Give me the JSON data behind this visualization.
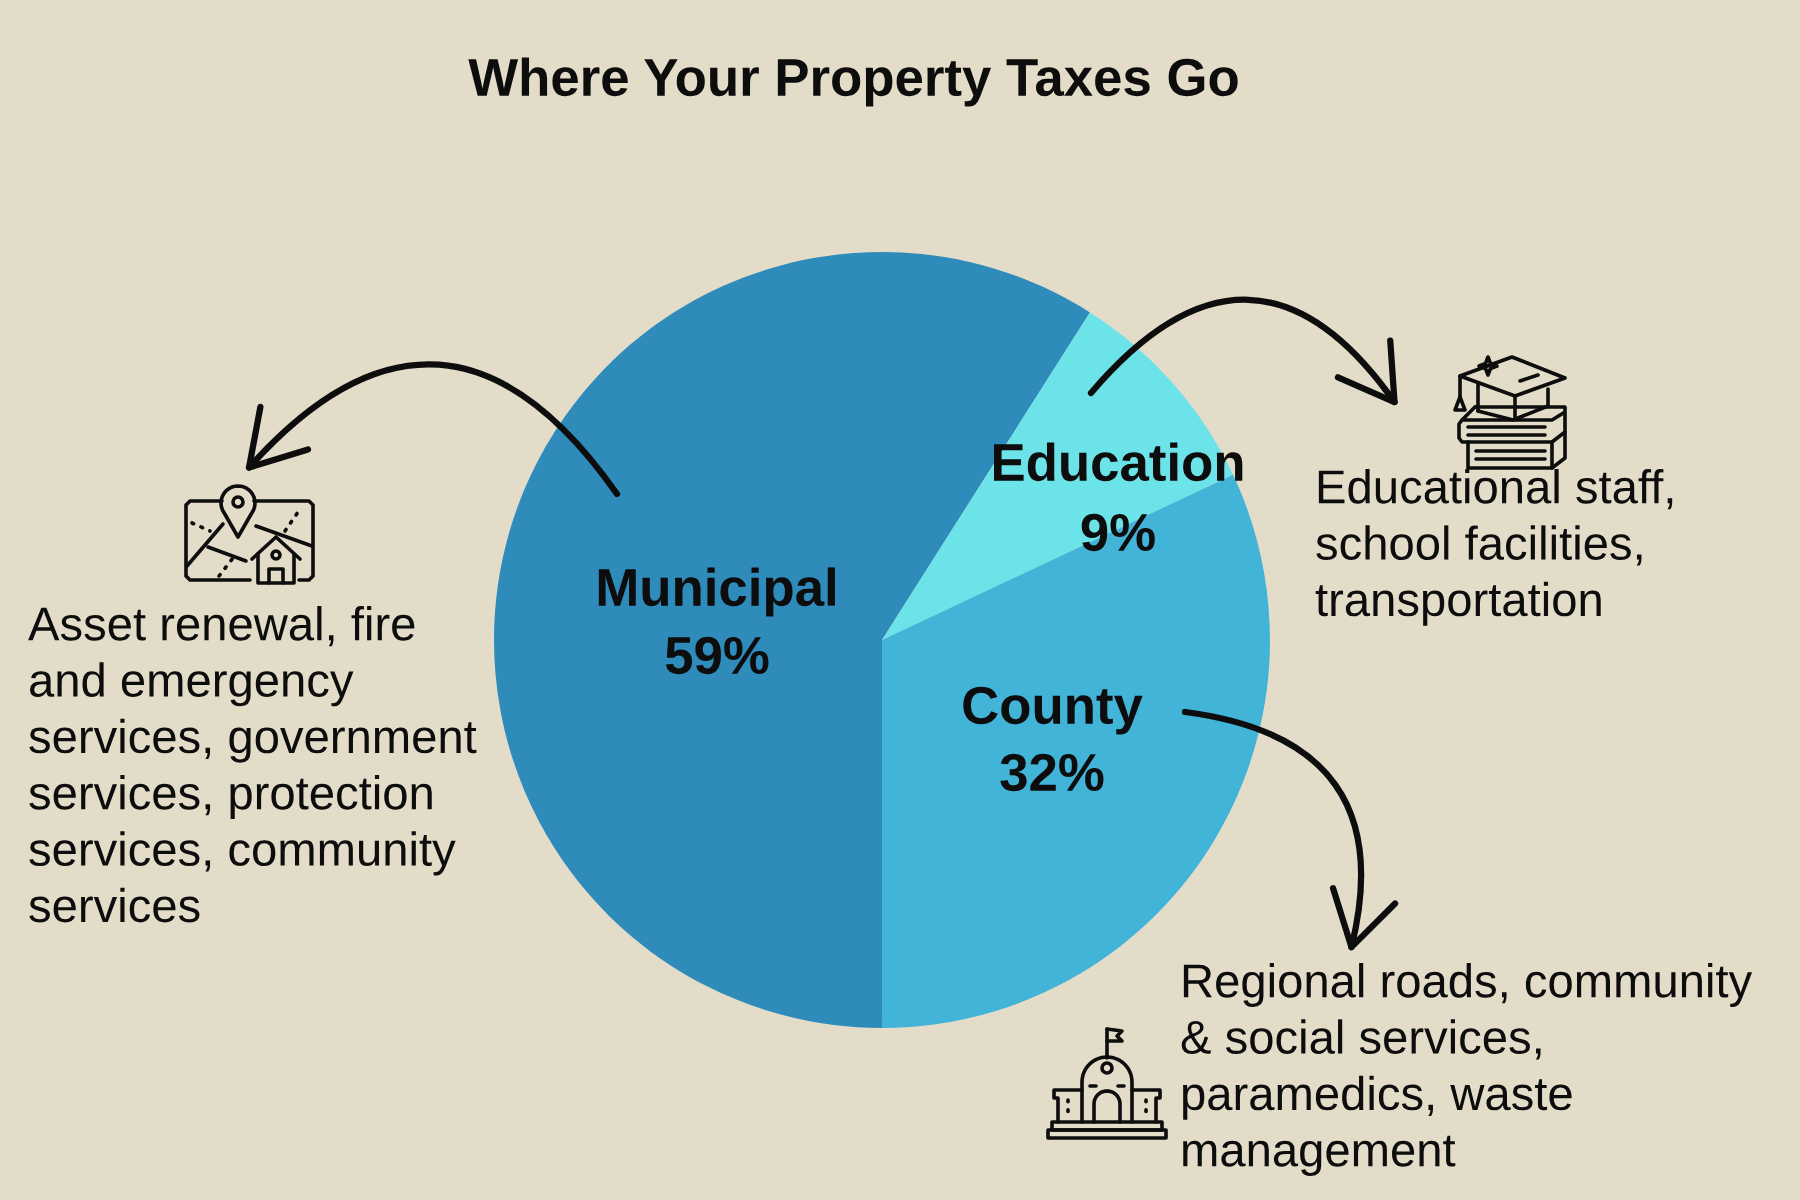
{
  "chart_data": {
    "type": "pie",
    "title": "Where Your Property Taxes Go",
    "categories": [
      "Municipal",
      "Education",
      "County"
    ],
    "values": [
      59,
      9,
      32
    ],
    "value_labels": [
      "59%",
      "9%",
      "32%"
    ],
    "colors": [
      "#2e8bba",
      "#6be3e8",
      "#42b4d7"
    ],
    "annotations": [
      "Asset renewal, fire\nand emergency\nservices, government\nservices, protection\nservices, community\nservices",
      "Educational staff,\nschool facilities,\ntransportation",
      "Regional roads, community\n& social services,\nparamedics, waste\nmanagement"
    ]
  }
}
